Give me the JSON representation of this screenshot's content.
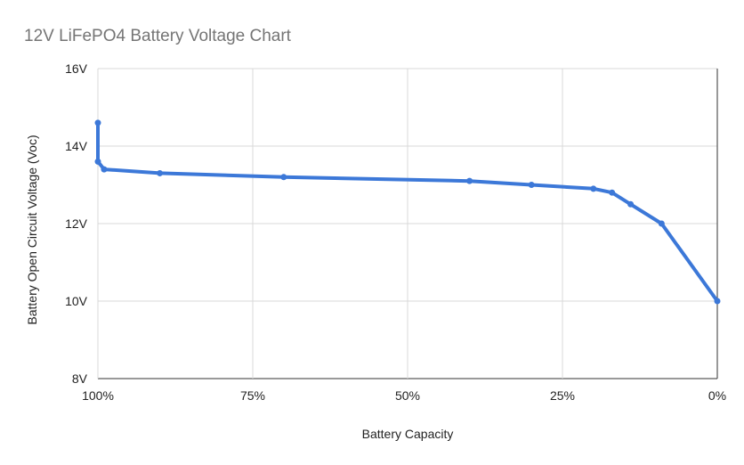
{
  "chart_data": {
    "type": "line",
    "title": "12V LiFePO4 Battery Voltage Chart",
    "xlabel": "Battery Capacity",
    "ylabel": "Battery Open Circuit Voltage (Voc)",
    "x_unit": "percent",
    "x_reversed": true,
    "xlim": [
      0,
      100
    ],
    "ylim": [
      8,
      16
    ],
    "x_ticks": [
      100,
      75,
      50,
      25,
      0
    ],
    "x_tick_labels": [
      "100%",
      "75%",
      "50%",
      "25%",
      "0%"
    ],
    "y_ticks": [
      8,
      10,
      12,
      14,
      16
    ],
    "y_tick_labels": [
      "8V",
      "10V",
      "12V",
      "14V",
      "16V"
    ],
    "grid": true,
    "legend": "none",
    "series": [
      {
        "color": "#3c78d8",
        "points": [
          {
            "x": 100,
            "y": 14.6
          },
          {
            "x": 100,
            "y": 13.6
          },
          {
            "x": 99,
            "y": 13.4
          },
          {
            "x": 90,
            "y": 13.3
          },
          {
            "x": 70,
            "y": 13.2
          },
          {
            "x": 40,
            "y": 13.1
          },
          {
            "x": 30,
            "y": 13.0
          },
          {
            "x": 20,
            "y": 12.9
          },
          {
            "x": 17,
            "y": 12.8
          },
          {
            "x": 14,
            "y": 12.5
          },
          {
            "x": 9,
            "y": 12.0
          },
          {
            "x": 0,
            "y": 10.0
          }
        ]
      }
    ]
  }
}
